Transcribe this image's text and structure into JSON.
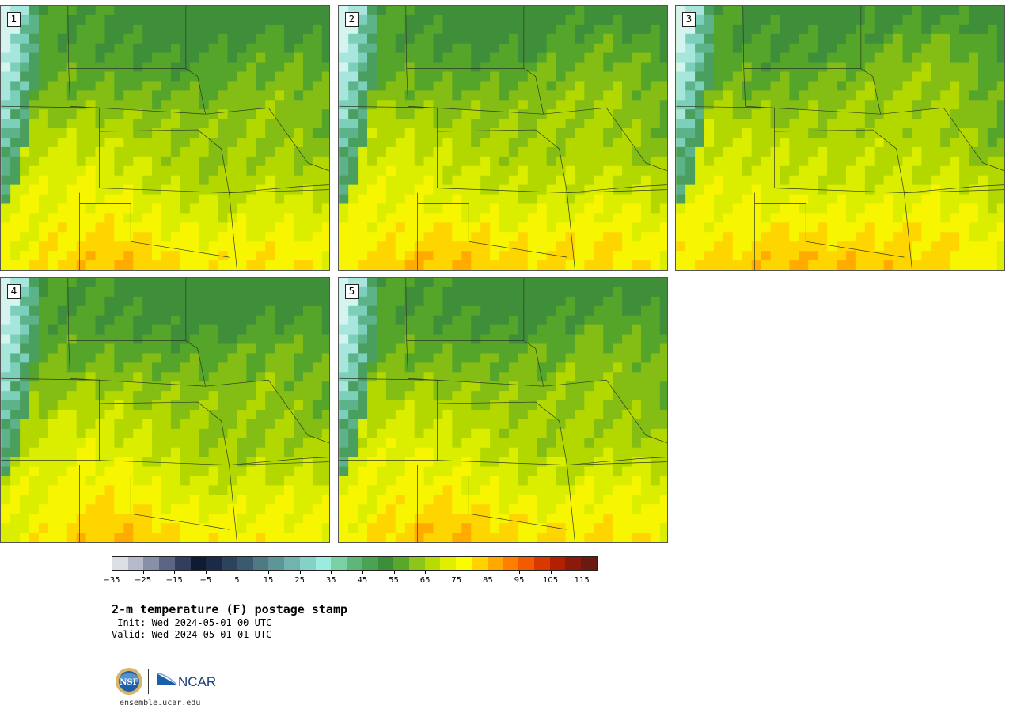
{
  "panels": [
    {
      "label": "1",
      "variant": 0.0
    },
    {
      "label": "2",
      "variant": 0.3
    },
    {
      "label": "3",
      "variant": 0.55
    },
    {
      "label": "4",
      "variant": -0.15
    },
    {
      "label": "5",
      "variant": 0.1
    }
  ],
  "colorbar": {
    "colors": [
      "#dcdee6",
      "#b6b9c9",
      "#898fa6",
      "#5c6684",
      "#333e5e",
      "#0f1b33",
      "#1b2b47",
      "#2b435d",
      "#3a5a70",
      "#4d7a85",
      "#5e9599",
      "#72b3b0",
      "#86d1c6",
      "#9cebe0",
      "#7ad1a3",
      "#5fb678",
      "#4aa252",
      "#3c8f38",
      "#5aa82a",
      "#8cc61a",
      "#b8dc00",
      "#e0ee00",
      "#fcfc00",
      "#ffd200",
      "#ffa800",
      "#ff7e00",
      "#f45a00",
      "#d93800",
      "#b32000",
      "#8c1a08",
      "#6a1a10"
    ],
    "ticks": [
      "−35",
      "−25",
      "−15",
      "−5",
      "5",
      "15",
      "25",
      "35",
      "45",
      "55",
      "65",
      "75",
      "85",
      "95",
      "105",
      "115"
    ]
  },
  "title": "2-m temperature (F) postage stamp",
  "init": " Init: Wed 2024-05-01 00 UTC",
  "valid": "Valid: Wed 2024-05-01 01 UTC",
  "site": "ensemble.ucar.edu",
  "logos": {
    "nsf": "NSF",
    "ncar": "NCAR"
  }
}
